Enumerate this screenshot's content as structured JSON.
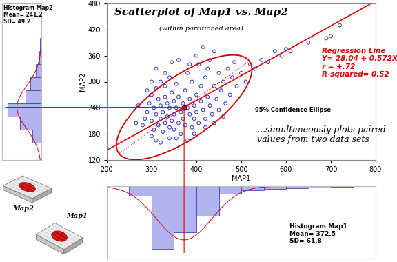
{
  "chart_data": [
    {
      "type": "scatter",
      "title": "Scatterplot of Map1 vs. Map2",
      "subtitle": "(within partitioned area)",
      "x_label": "MAP1",
      "y_label": "MAP2",
      "xlim": [
        200,
        800
      ],
      "xticks": [
        200,
        300,
        400,
        500,
        600,
        700,
        800
      ],
      "ylim": [
        120,
        480
      ],
      "yticks": [
        120,
        180,
        240,
        300,
        360,
        420,
        480
      ],
      "color": "#3030c8",
      "marker": "circle",
      "x": [
        290,
        295,
        300,
        300,
        305,
        305,
        310,
        310,
        315,
        315,
        320,
        320,
        320,
        325,
        325,
        330,
        330,
        330,
        335,
        335,
        340,
        340,
        340,
        345,
        345,
        350,
        350,
        350,
        355,
        355,
        360,
        360,
        365,
        365,
        370,
        370,
        375,
        375,
        380,
        380,
        385,
        385,
        390,
        390,
        395,
        395,
        400,
        400,
        405,
        405,
        410,
        410,
        415,
        420,
        420,
        425,
        430,
        430,
        435,
        440,
        440,
        445,
        450,
        450,
        455,
        460,
        465,
        470,
        475,
        480,
        485,
        490,
        500,
        510,
        520,
        530,
        545,
        560,
        575,
        590,
        600,
        610,
        650,
        690,
        700,
        720,
        280,
        285,
        270,
        265,
        300,
        310,
        320,
        340,
        330,
        345,
        360,
        310,
        380,
        395,
        420,
        440,
        460,
        355,
        300,
        290,
        400,
        415,
        425,
        385
      ],
      "y": [
        230,
        250,
        210,
        270,
        190,
        240,
        225,
        285,
        200,
        260,
        215,
        245,
        300,
        185,
        230,
        205,
        265,
        290,
        220,
        250,
        195,
        240,
        310,
        210,
        275,
        225,
        255,
        190,
        240,
        295,
        205,
        265,
        230,
        180,
        250,
        215,
        280,
        200,
        240,
        320,
        225,
        260,
        195,
        300,
        245,
        215,
        270,
        230,
        340,
        205,
        255,
        290,
        235,
        310,
        215,
        265,
        350,
        245,
        225,
        290,
        370,
        260,
        235,
        320,
        280,
        300,
        250,
        330,
        270,
        310,
        345,
        290,
        320,
        300,
        340,
        330,
        350,
        345,
        370,
        360,
        375,
        370,
        390,
        400,
        405,
        430,
        200,
        215,
        245,
        205,
        175,
        165,
        160,
        170,
        320,
        345,
        350,
        330,
        165,
        180,
        195,
        205,
        220,
        170,
        300,
        280,
        360,
        380,
        330,
        340
      ],
      "regression": {
        "intercept": 28.04,
        "slope": 0.572,
        "r": 0.72,
        "color": "#e00000",
        "texts": [
          "Regression Line",
          "Y= 28.04 + 0.572X",
          "r = +.72",
          "R-squared= 0.52"
        ]
      },
      "ellipse": {
        "label": "95% Confidence Ellipse",
        "confidence": 95,
        "color": "#d00000"
      },
      "annotation": "...simultaneously plots paired\nvalues from two data sets"
    },
    {
      "type": "histogram",
      "orientation": "horizontal",
      "title": "Histogram Map2",
      "stats": [
        "Mean= 241.2",
        "SD= 49.2"
      ],
      "mean": 241.2,
      "sd": 49.2,
      "bins": [
        160,
        190,
        220,
        250,
        280,
        310,
        340,
        370,
        400,
        430
      ],
      "counts": [
        25,
        60,
        95,
        45,
        30,
        15,
        6,
        3,
        2
      ],
      "ylim": [
        120,
        480
      ],
      "xlim": [
        0,
        110
      ],
      "tick_labels": false,
      "color": "#b3b3f0"
    },
    {
      "type": "histogram",
      "title": "Histogram Map1",
      "stats": [
        "Mean= 372.5",
        "SD= 61.8"
      ],
      "mean": 372.5,
      "sd": 61.8,
      "bins": [
        250,
        300,
        350,
        400,
        450,
        500,
        550,
        600,
        650,
        700,
        750
      ],
      "counts": [
        15,
        95,
        70,
        45,
        12,
        6,
        4,
        3,
        2,
        1
      ],
      "xlim": [
        200,
        800
      ],
      "ylim": [
        0,
        110
      ],
      "tick_labels": false,
      "color": "#b3b3f0"
    }
  ],
  "icons": {
    "labels": [
      "Map2",
      "Map1"
    ]
  }
}
